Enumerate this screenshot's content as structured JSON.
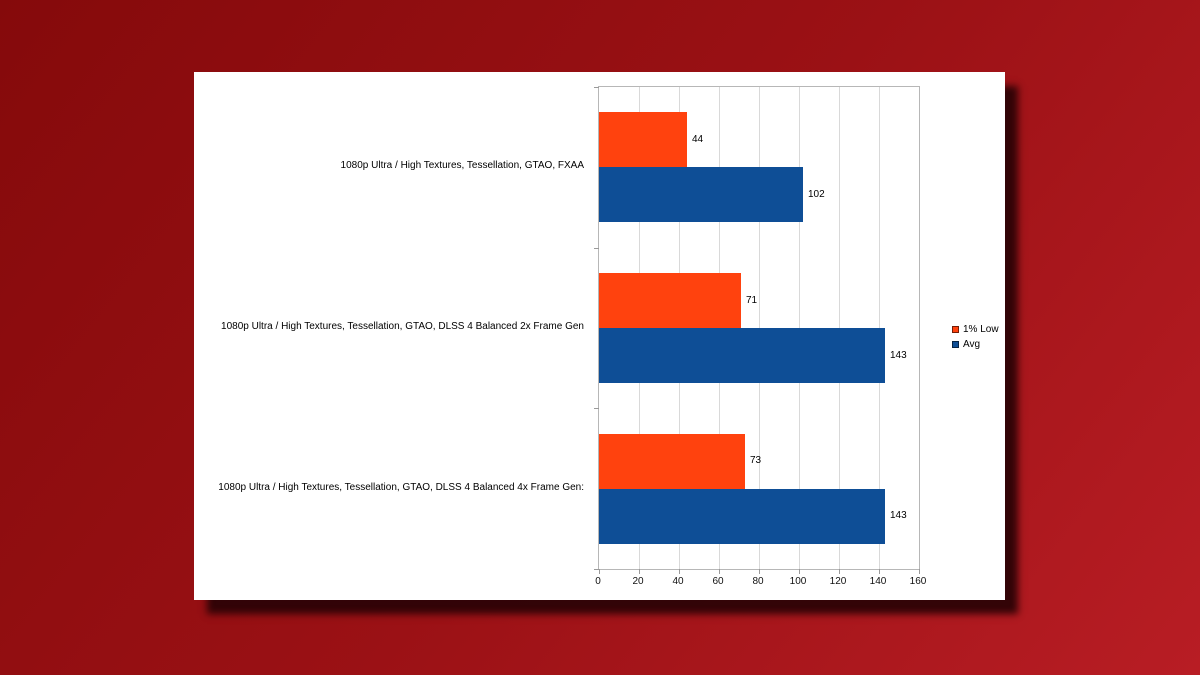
{
  "background": {
    "gradient_start": "#850a0b",
    "gradient_end": "#b81d24"
  },
  "card": {
    "bg": "#ffffff",
    "shadow_color": "#2c0306"
  },
  "chart_data": {
    "type": "bar",
    "orientation": "horizontal",
    "title": "",
    "xlabel": "",
    "ylabel": "",
    "categories": [
      "1080p Ultra / High Textures, Tessellation, GTAO, FXAA",
      "1080p Ultra / High Textures, Tessellation, GTAO, DLSS 4 Balanced 2x Frame Gen",
      "1080p Ultra / High Textures, Tessellation, GTAO, DLSS 4 Balanced 4x Frame Gen:"
    ],
    "series": [
      {
        "name": "1% Low",
        "color": "#ff420e",
        "values": [
          44,
          71,
          73
        ]
      },
      {
        "name": "Avg",
        "color": "#0e4e96",
        "values": [
          102,
          143,
          143
        ]
      }
    ],
    "xlim": [
      0,
      160
    ],
    "x_ticks": [
      0,
      20,
      40,
      60,
      80,
      100,
      120,
      140,
      160
    ],
    "grid": true,
    "grid_color": "#d9d9d9",
    "axis_border_color": "#b7b7b7",
    "value_labels": true,
    "legend_position": "right"
  }
}
